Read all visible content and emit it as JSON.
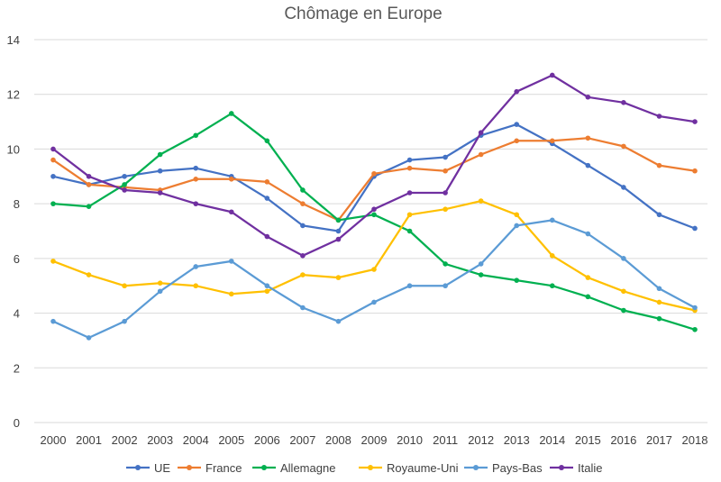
{
  "chart_data": {
    "type": "line",
    "title": "Chômage en Europe",
    "xlabel": "",
    "ylabel": "",
    "ylim": [
      0,
      14
    ],
    "yticks": [
      0,
      2,
      4,
      6,
      8,
      10,
      12,
      14
    ],
    "ytick_labels": [
      "0",
      "2",
      "4",
      "6",
      "8",
      "10",
      "12",
      "14"
    ],
    "grid": true,
    "legend_position": "bottom",
    "x": [
      "2000",
      "2001",
      "2002",
      "2003",
      "2004",
      "2005",
      "2006",
      "2007",
      "2008",
      "2009",
      "2010",
      "2011",
      "2012",
      "2013",
      "2014",
      "2015",
      "2016",
      "2017",
      "2018"
    ],
    "series": [
      {
        "name": "UE",
        "color": "#4472C4",
        "values": [
          9.0,
          8.7,
          9.0,
          9.2,
          9.3,
          9.0,
          8.2,
          7.2,
          7.0,
          9.0,
          9.6,
          9.7,
          10.5,
          10.9,
          10.2,
          9.4,
          8.6,
          7.6,
          7.1
        ]
      },
      {
        "name": "France",
        "color": "#ED7D31",
        "values": [
          9.6,
          8.7,
          8.6,
          8.5,
          8.9,
          8.9,
          8.8,
          8.0,
          7.4,
          9.1,
          9.3,
          9.2,
          9.8,
          10.3,
          10.3,
          10.4,
          10.1,
          9.4,
          9.2
        ]
      },
      {
        "name": "Allemagne",
        "color": "#00B050",
        "values": [
          8.0,
          7.9,
          8.7,
          9.8,
          10.5,
          11.3,
          10.3,
          8.5,
          7.4,
          7.6,
          7.0,
          5.8,
          5.4,
          5.2,
          5.0,
          4.6,
          4.1,
          3.8,
          3.4
        ]
      },
      {
        "name": "Royaume-Uni",
        "color": "#FFC000",
        "values": [
          5.9,
          5.4,
          5.0,
          5.1,
          5.0,
          4.7,
          4.8,
          5.4,
          5.3,
          5.6,
          7.6,
          7.8,
          8.1,
          7.6,
          6.1,
          5.3,
          4.8,
          4.4,
          4.1
        ]
      },
      {
        "name": "Pays-Bas",
        "color": "#5B9BD5",
        "values": [
          3.7,
          3.1,
          3.7,
          4.8,
          5.7,
          5.9,
          5.0,
          4.2,
          3.7,
          4.4,
          5.0,
          5.0,
          5.8,
          7.2,
          7.4,
          6.9,
          6.0,
          4.9,
          4.2
        ]
      },
      {
        "name": "Italie",
        "color": "#7030A0",
        "values": [
          10.0,
          9.0,
          8.5,
          8.4,
          8.0,
          7.7,
          6.8,
          6.1,
          6.7,
          7.8,
          8.4,
          8.4,
          10.6,
          12.1,
          12.7,
          11.9,
          11.7,
          11.2,
          11.0
        ]
      }
    ]
  }
}
